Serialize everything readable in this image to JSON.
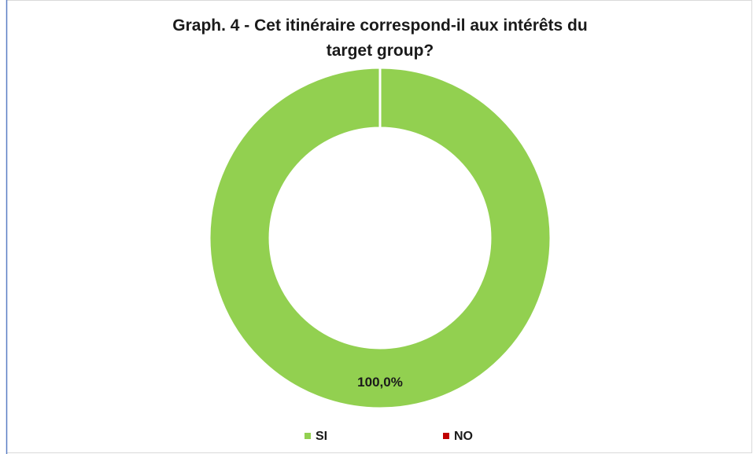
{
  "chart_data": {
    "type": "donut",
    "title": "Graph. 4 - Cet itinéraire correspond-il aux intérêts du target group?",
    "categories": [
      "SI",
      "NO"
    ],
    "values": [
      100,
      0
    ],
    "value_labels": [
      "100,0%",
      null
    ],
    "colors": [
      "#92d050",
      "#c00000"
    ],
    "legend": "bottom"
  }
}
